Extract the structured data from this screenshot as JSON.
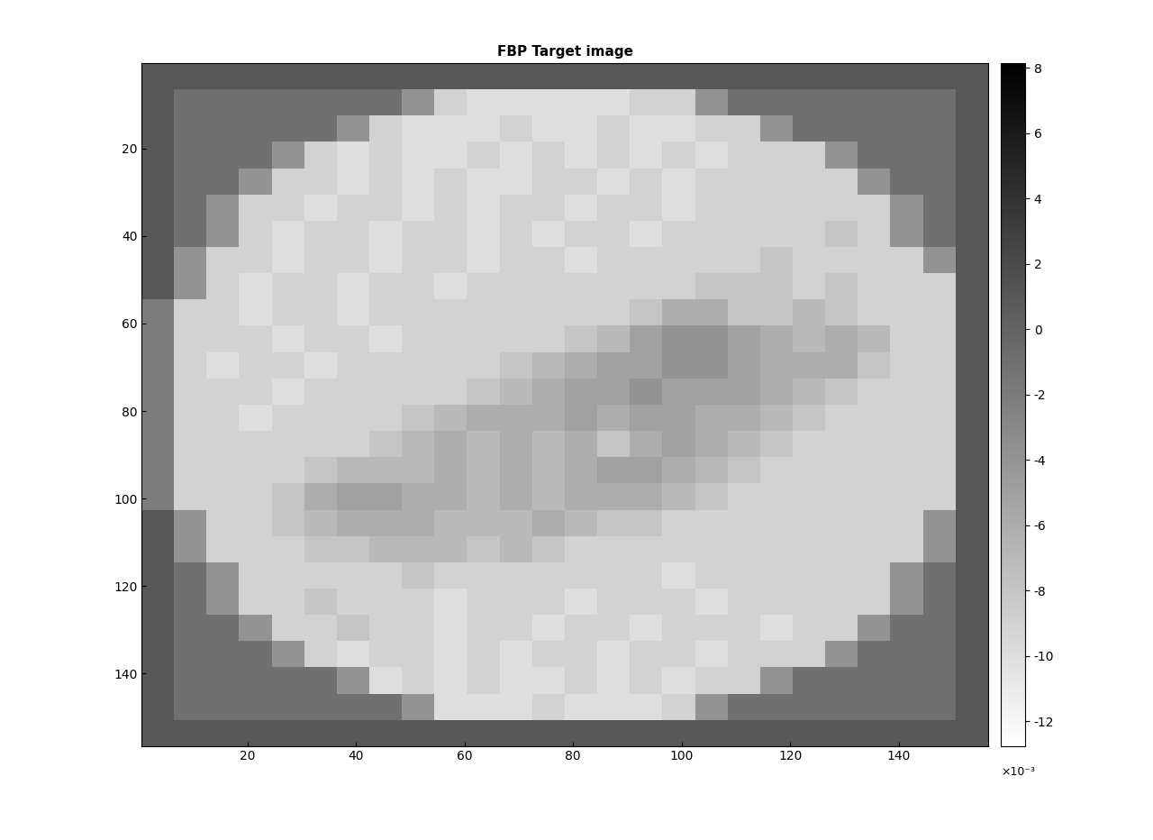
{
  "chart_data": {
    "type": "heatmap",
    "title": "FBP Target image",
    "xlim": [
      0.5,
      156.5
    ],
    "ylim": [
      156.5,
      0.5
    ],
    "xticks": [
      20,
      40,
      60,
      80,
      100,
      120,
      140
    ],
    "yticks": [
      20,
      40,
      60,
      80,
      100,
      120,
      140
    ],
    "colorbar_range": [
      -12.75,
      8.15
    ],
    "colorbar_ticks": [
      -12,
      -10,
      -8,
      -6,
      -4,
      -2,
      0,
      2,
      4,
      6,
      8
    ],
    "colorbar_offset_text": "×10⁻³",
    "cells": [
      [
        1,
        1,
        1,
        1,
        1,
        1,
        1,
        1,
        1,
        1,
        1,
        1,
        1,
        1,
        1,
        1,
        1,
        1,
        1,
        1,
        1,
        1,
        1,
        1,
        1,
        1
      ],
      [
        1,
        -1,
        -1,
        -1,
        -1,
        -1,
        -1,
        -1,
        -4,
        -9,
        -10,
        -10,
        -10,
        -10,
        -10,
        -9,
        -9,
        -4,
        -1,
        -1,
        -1,
        -1,
        -1,
        -1,
        -1,
        1
      ],
      [
        1,
        -1,
        -1,
        -1,
        -1,
        -1,
        -4,
        -9,
        -10,
        -10,
        -10,
        -9,
        -10,
        -10,
        -9,
        -10,
        -10,
        -9,
        -9,
        -4,
        -1,
        -1,
        -1,
        -1,
        -1,
        1
      ],
      [
        1,
        -1,
        -1,
        -1,
        -4,
        -9,
        -10,
        -9,
        -10,
        -10,
        -9,
        -10,
        -9,
        -10,
        -9,
        -10,
        -9,
        -10,
        -9,
        -9,
        -9,
        -4,
        -1,
        -1,
        -1,
        1
      ],
      [
        1,
        -1,
        -1,
        -4,
        -9,
        -9,
        -10,
        -9,
        -10,
        -9,
        -10,
        -10,
        -9,
        -9,
        -10,
        -9,
        -10,
        -9,
        -9,
        -9,
        -9,
        -9,
        -4,
        -1,
        -1,
        1
      ],
      [
        1,
        -1,
        -4,
        -9,
        -9,
        -10,
        -9,
        -9,
        -10,
        -9,
        -10,
        -9,
        -9,
        -10,
        -9,
        -9,
        -10,
        -9,
        -9,
        -9,
        -9,
        -9,
        -9,
        -4,
        -1,
        1
      ],
      [
        1,
        -1,
        -4,
        -9,
        -10,
        -9,
        -9,
        -10,
        -9,
        -9,
        -10,
        -9,
        -10,
        -9,
        -9,
        -10,
        -9,
        -9,
        -9,
        -9,
        -9,
        -8,
        -9,
        -4,
        -1,
        1
      ],
      [
        1,
        -4,
        -9,
        -9,
        -10,
        -9,
        -9,
        -10,
        -9,
        -9,
        -10,
        -9,
        -9,
        -10,
        -9,
        -9,
        -9,
        -9,
        -9,
        -8,
        -9,
        -9,
        -9,
        -9,
        -4,
        1
      ],
      [
        1,
        -4,
        -9,
        -10,
        -9,
        -9,
        -10,
        -9,
        -9,
        -10,
        -9,
        -9,
        -9,
        -9,
        -9,
        -9,
        -9,
        -8,
        -8,
        -8,
        -9,
        -8,
        -9,
        -9,
        -9,
        1
      ],
      [
        -2,
        -9,
        -9,
        -10,
        -9,
        -9,
        -10,
        -9,
        -9,
        -9,
        -9,
        -9,
        -9,
        -9,
        -9,
        -8,
        -6,
        -6,
        -8,
        -8,
        -7,
        -8,
        -9,
        -9,
        -9,
        1
      ],
      [
        -2,
        -9,
        -9,
        -9,
        -10,
        -9,
        -9,
        -10,
        -9,
        -9,
        -9,
        -9,
        -9,
        -8,
        -7,
        -5,
        -4,
        -4,
        -5,
        -6,
        -7,
        -6,
        -7,
        -9,
        -9,
        1
      ],
      [
        -2,
        -9,
        -10,
        -9,
        -9,
        -10,
        -9,
        -9,
        -9,
        -9,
        -9,
        -8,
        -7,
        -6,
        -5,
        -5,
        -4,
        -4,
        -5,
        -6,
        -6,
        -6,
        -8,
        -9,
        -9,
        1
      ],
      [
        -2,
        -9,
        -9,
        -9,
        -10,
        -9,
        -9,
        -9,
        -9,
        -9,
        -8,
        -7,
        -6,
        -5,
        -5,
        -4,
        -5,
        -5,
        -5,
        -6,
        -7,
        -8,
        -9,
        -9,
        -9,
        1
      ],
      [
        -2,
        -9,
        -9,
        -10,
        -9,
        -9,
        -9,
        -9,
        -8,
        -7,
        -6,
        -6,
        -6,
        -5,
        -6,
        -5,
        -5,
        -6,
        -6,
        -7,
        -8,
        -9,
        -9,
        -9,
        -9,
        1
      ],
      [
        -2,
        -9,
        -9,
        -9,
        -9,
        -9,
        -9,
        -8,
        -7,
        -6,
        -7,
        -6,
        -7,
        -6,
        -8,
        -6,
        -5,
        -6,
        -7,
        -8,
        -9,
        -9,
        -9,
        -9,
        -9,
        1
      ],
      [
        -2,
        -9,
        -9,
        -9,
        -9,
        -8,
        -7,
        -7,
        -7,
        -6,
        -7,
        -6,
        -7,
        -6,
        -5,
        -5,
        -6,
        -7,
        -8,
        -9,
        -9,
        -9,
        -9,
        -9,
        -9,
        1
      ],
      [
        -2,
        -9,
        -9,
        -9,
        -8,
        -6,
        -5,
        -5,
        -6,
        -6,
        -7,
        -6,
        -7,
        -6,
        -6,
        -6,
        -7,
        -8,
        -9,
        -9,
        -9,
        -9,
        -9,
        -9,
        -9,
        1
      ],
      [
        1,
        -4,
        -9,
        -9,
        -8,
        -7,
        -6,
        -6,
        -6,
        -7,
        -7,
        -7,
        -6,
        -7,
        -8,
        -8,
        -9,
        -9,
        -9,
        -9,
        -9,
        -9,
        -9,
        -9,
        -4,
        1
      ],
      [
        1,
        -4,
        -9,
        -9,
        -9,
        -8,
        -8,
        -7,
        -7,
        -7,
        -8,
        -7,
        -8,
        -9,
        -9,
        -9,
        -9,
        -9,
        -9,
        -9,
        -9,
        -9,
        -9,
        -9,
        -4,
        1
      ],
      [
        1,
        -1,
        -4,
        -9,
        -9,
        -9,
        -9,
        -9,
        -8,
        -9,
        -9,
        -9,
        -9,
        -9,
        -9,
        -9,
        -10,
        -9,
        -9,
        -9,
        -9,
        -9,
        -9,
        -4,
        -1,
        1
      ],
      [
        1,
        -1,
        -4,
        -9,
        -9,
        -8,
        -9,
        -9,
        -9,
        -10,
        -9,
        -9,
        -9,
        -10,
        -9,
        -9,
        -9,
        -10,
        -9,
        -9,
        -9,
        -9,
        -9,
        -4,
        -1,
        1
      ],
      [
        1,
        -1,
        -1,
        -4,
        -9,
        -9,
        -8,
        -9,
        -9,
        -10,
        -9,
        -9,
        -10,
        -9,
        -9,
        -10,
        -9,
        -9,
        -9,
        -10,
        -9,
        -9,
        -4,
        -1,
        -1,
        1
      ],
      [
        1,
        -1,
        -1,
        -1,
        -4,
        -9,
        -10,
        -9,
        -9,
        -10,
        -9,
        -10,
        -9,
        -9,
        -10,
        -9,
        -9,
        -10,
        -9,
        -9,
        -9,
        -4,
        -1,
        -1,
        -1,
        1
      ],
      [
        1,
        -1,
        -1,
        -1,
        -1,
        -1,
        -4,
        -10,
        -9,
        -10,
        -9,
        -10,
        -10,
        -9,
        -10,
        -9,
        -10,
        -9,
        -9,
        -4,
        -1,
        -1,
        -1,
        -1,
        -1,
        1
      ],
      [
        1,
        -1,
        -1,
        -1,
        -1,
        -1,
        -1,
        -1,
        -4,
        -10,
        -10,
        -10,
        -9,
        -10,
        -10,
        -10,
        -9,
        -4,
        -1,
        -1,
        -1,
        -1,
        -1,
        -1,
        -1,
        1
      ],
      [
        1,
        1,
        1,
        1,
        1,
        1,
        1,
        1,
        1,
        1,
        1,
        1,
        1,
        1,
        1,
        1,
        1,
        1,
        1,
        1,
        1,
        1,
        1,
        1,
        1,
        1
      ]
    ]
  }
}
